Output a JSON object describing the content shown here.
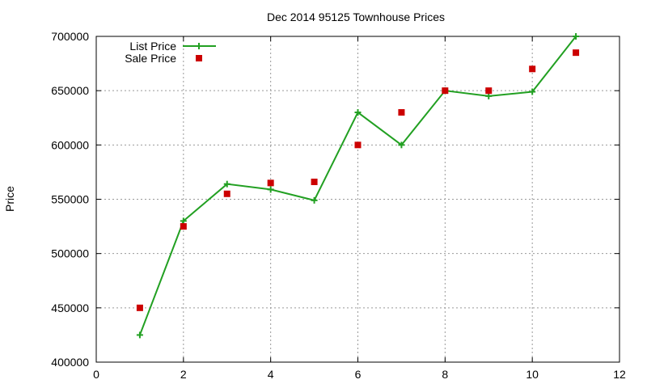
{
  "chart_data": {
    "type": "line",
    "title": "Dec 2014 95125 Townhouse Prices",
    "xlabel": "",
    "ylabel": "Price",
    "xlim": [
      0,
      12
    ],
    "ylim": [
      400000,
      700000
    ],
    "x_ticks": [
      0,
      2,
      4,
      6,
      8,
      10,
      12
    ],
    "y_ticks": [
      400000,
      450000,
      500000,
      550000,
      600000,
      650000,
      700000
    ],
    "grid": true,
    "legend_position": "top-left",
    "series": [
      {
        "name": "List Price",
        "style": "line-with-plus-markers",
        "color": "#22a022",
        "x": [
          1,
          2,
          3,
          4,
          5,
          6,
          7,
          8,
          9,
          10,
          11
        ],
        "y": [
          425000,
          530000,
          564000,
          559000,
          549000,
          630000,
          600000,
          650000,
          645000,
          649000,
          700000
        ]
      },
      {
        "name": "Sale Price",
        "style": "square-markers",
        "color": "#cc0000",
        "x": [
          1,
          2,
          3,
          4,
          5,
          6,
          7,
          8,
          9,
          10,
          11
        ],
        "y": [
          450000,
          525000,
          555000,
          565000,
          566000,
          600000,
          630000,
          650000,
          650000,
          670000,
          685000
        ]
      }
    ]
  }
}
